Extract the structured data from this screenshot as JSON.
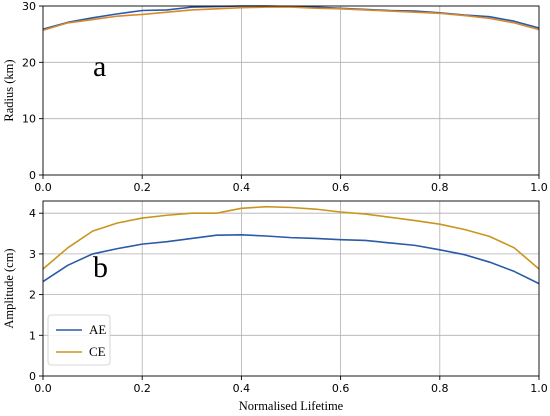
{
  "chart_data": [
    {
      "type": "line",
      "panel_label": "a",
      "ylabel": "Radius (km)",
      "xlabel": "",
      "xlim": [
        0.0,
        1.0
      ],
      "ylim": [
        0,
        30
      ],
      "xticks": [
        "0.0",
        "0.2",
        "0.4",
        "0.6",
        "0.8",
        "1.0"
      ],
      "yticks": [
        "0",
        "10",
        "20",
        "30"
      ],
      "ytick_values": [
        0,
        10,
        20,
        30
      ],
      "grid": true,
      "x": [
        0.0,
        0.05,
        0.1,
        0.15,
        0.2,
        0.25,
        0.3,
        0.35,
        0.4,
        0.45,
        0.5,
        0.55,
        0.6,
        0.65,
        0.7,
        0.75,
        0.8,
        0.85,
        0.9,
        0.95,
        1.0
      ],
      "series": [
        {
          "color": "#2a5aa8",
          "values": [
            25.9,
            27.1,
            27.9,
            28.6,
            29.2,
            29.3,
            29.8,
            29.9,
            30.0,
            30.0,
            29.9,
            29.8,
            29.6,
            29.4,
            29.2,
            29.1,
            28.8,
            28.4,
            28.1,
            27.3,
            26.1
          ]
        },
        {
          "color": "#d9892b",
          "values": [
            25.7,
            27.0,
            27.6,
            28.2,
            28.5,
            28.9,
            29.3,
            29.5,
            29.7,
            29.8,
            29.8,
            29.6,
            29.5,
            29.3,
            29.1,
            28.9,
            28.7,
            28.3,
            27.8,
            27.0,
            25.8
          ]
        }
      ]
    },
    {
      "type": "line",
      "panel_label": "b",
      "ylabel": "Amplitude (cm)",
      "xlabel": "Normalised Lifetime",
      "xlim": [
        0.0,
        1.0
      ],
      "ylim": [
        0,
        4.3
      ],
      "xticks": [
        "0.0",
        "0.2",
        "0.4",
        "0.6",
        "0.8",
        "1.0"
      ],
      "yticks": [
        "0",
        "1",
        "2",
        "3",
        "4"
      ],
      "ytick_values": [
        0,
        1,
        2,
        3,
        4
      ],
      "grid": true,
      "legend": "lower-left",
      "x": [
        0.0,
        0.05,
        0.1,
        0.15,
        0.2,
        0.25,
        0.3,
        0.35,
        0.4,
        0.45,
        0.5,
        0.55,
        0.6,
        0.65,
        0.7,
        0.75,
        0.8,
        0.85,
        0.9,
        0.95,
        1.0
      ],
      "series": [
        {
          "name": "AE",
          "color": "#2a5aa8",
          "values": [
            2.32,
            2.72,
            3.0,
            3.13,
            3.24,
            3.3,
            3.38,
            3.46,
            3.47,
            3.44,
            3.4,
            3.38,
            3.35,
            3.33,
            3.27,
            3.21,
            3.1,
            2.98,
            2.8,
            2.57,
            2.27
          ]
        },
        {
          "name": "CE",
          "color": "#c8961e",
          "values": [
            2.63,
            3.15,
            3.56,
            3.76,
            3.88,
            3.95,
            4.0,
            4.0,
            4.12,
            4.16,
            4.14,
            4.1,
            4.03,
            3.98,
            3.9,
            3.82,
            3.73,
            3.6,
            3.43,
            3.15,
            2.63
          ]
        }
      ]
    }
  ]
}
